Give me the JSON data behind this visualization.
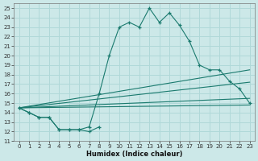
{
  "xlabel": "Humidex (Indice chaleur)",
  "background_color": "#cce8e8",
  "grid_color": "#b0d8d8",
  "line_color": "#1a7a6e",
  "xlim": [
    -0.5,
    23.5
  ],
  "ylim": [
    11,
    25.5
  ],
  "yticks": [
    11,
    12,
    13,
    14,
    15,
    16,
    17,
    18,
    19,
    20,
    21,
    22,
    23,
    24,
    25
  ],
  "xticks": [
    0,
    1,
    2,
    3,
    4,
    5,
    6,
    7,
    8,
    9,
    10,
    11,
    12,
    13,
    14,
    15,
    16,
    17,
    18,
    19,
    20,
    21,
    22,
    23
  ],
  "x_main": [
    0,
    1,
    2,
    3,
    4,
    5,
    6,
    7,
    8,
    9,
    10,
    11,
    12,
    13,
    14,
    15,
    16,
    17,
    18,
    19,
    20,
    21,
    22,
    23
  ],
  "y_main": [
    14.5,
    14.0,
    13.5,
    13.5,
    12.2,
    12.2,
    12.2,
    12.5,
    16.0,
    20.0,
    23.0,
    23.5,
    23.0,
    25.0,
    23.5,
    24.5,
    23.2,
    21.5,
    19.0,
    18.5,
    18.5,
    17.3,
    16.5,
    15.0
  ],
  "x_low": [
    0,
    1,
    2,
    3,
    4,
    5,
    6,
    7,
    8
  ],
  "y_low": [
    14.5,
    14.0,
    13.5,
    13.5,
    12.2,
    12.2,
    12.2,
    12.0,
    12.5
  ],
  "reg_lines": [
    {
      "x0": 0,
      "y0": 14.5,
      "x1": 23,
      "y1": 18.5
    },
    {
      "x0": 0,
      "y0": 14.5,
      "x1": 23,
      "y1": 17.2
    },
    {
      "x0": 0,
      "y0": 14.5,
      "x1": 23,
      "y1": 15.5
    },
    {
      "x0": 0,
      "y0": 14.5,
      "x1": 23,
      "y1": 14.8
    }
  ]
}
